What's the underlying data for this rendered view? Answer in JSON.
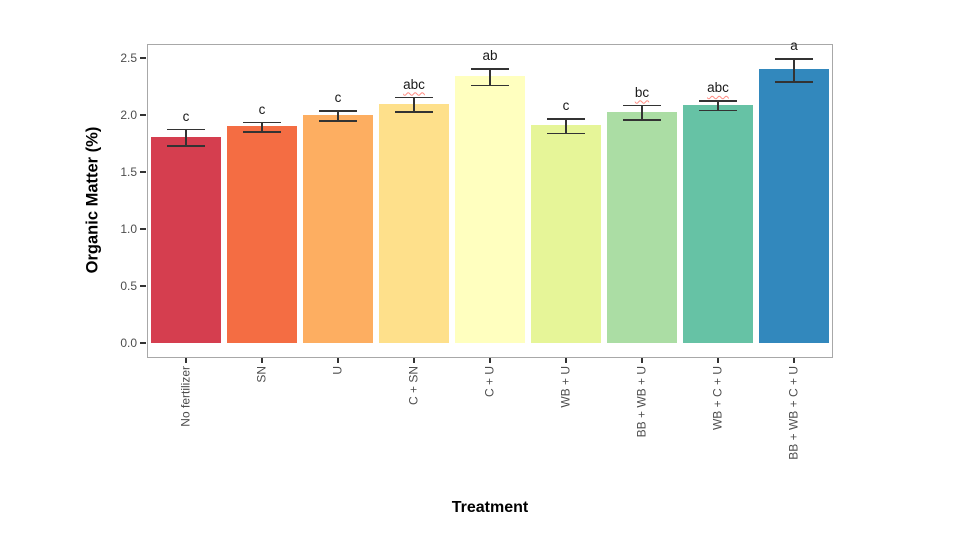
{
  "chart_data": {
    "type": "bar",
    "title": "",
    "xlabel": "Treatment",
    "ylabel": "Organic Matter (%)",
    "categories": [
      "No fertilizer",
      "SN",
      "U",
      "C + SN",
      "C + U",
      "WB + U",
      "BB + WB + U",
      "WB + C + U",
      "BB + WB + C + U"
    ],
    "values": [
      1.81,
      1.9,
      2.0,
      2.1,
      2.34,
      1.91,
      2.03,
      2.09,
      2.4
    ],
    "error_bars": [
      0.08,
      0.05,
      0.05,
      0.07,
      0.08,
      0.07,
      0.07,
      0.05,
      0.11
    ],
    "sig_letters": [
      "c",
      "c",
      "c",
      "abc",
      "ab",
      "c",
      "bc",
      "abc",
      "a"
    ],
    "sig_letter_spellcheck_underline": [
      false,
      false,
      false,
      true,
      false,
      false,
      true,
      true,
      false
    ],
    "bar_colors": [
      "#d53e4f",
      "#f46d43",
      "#fdae61",
      "#fee08b",
      "#ffffbf",
      "#e6f598",
      "#abdda4",
      "#66c2a5",
      "#3288bd"
    ],
    "y_tick_labels": [
      "0.0",
      "0.5",
      "1.0",
      "1.5",
      "2.0",
      "2.5"
    ],
    "y_tick_values": [
      0.0,
      0.5,
      1.0,
      1.5,
      2.0,
      2.5
    ],
    "ylim": [
      0,
      2.62
    ],
    "grid": false,
    "legend": "none",
    "styling": {
      "background": "#ffffff",
      "panel_border_color": "#a8a8a8",
      "errorbar_color": "#333333",
      "axis_text_color": "#4d4d4d",
      "axis_title_color": "#000000",
      "sig_letter_color": "#1a1a1a",
      "spellcheck_underline_color": "#ff8980"
    }
  }
}
